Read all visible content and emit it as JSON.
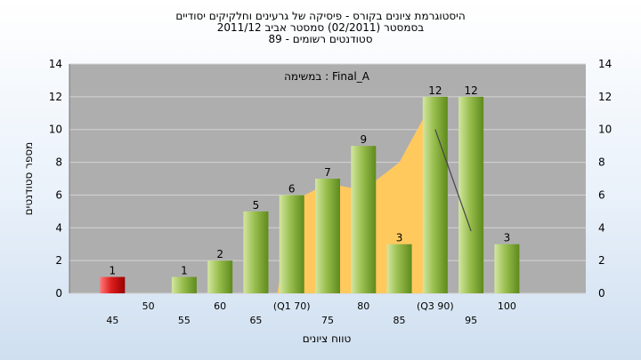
{
  "chart_data": {
    "type": "bar",
    "title_lines": [
      "היסטוגרמת ציונים בקורס - פיסיקה של גרעינים וחלקיקים יסודיים",
      "בסמסטר  (02/2011)  סמסטר אביב 2011/12",
      "סטודנטים רשומים - 89"
    ],
    "annotation": "במשימה : Final_A",
    "xlabel": "טווח ציונים",
    "ylabel": "מספר סטודנטים",
    "ylim": [
      0,
      14
    ],
    "yticks": [
      0,
      2,
      4,
      6,
      8,
      10,
      12,
      14
    ],
    "grid": true,
    "x_tick_labels": [
      {
        "x": 45,
        "label": "45",
        "row": "lower"
      },
      {
        "x": 50,
        "label": "50",
        "row": "upper"
      },
      {
        "x": 55,
        "label": "55",
        "row": "lower"
      },
      {
        "x": 60,
        "label": "60",
        "row": "upper"
      },
      {
        "x": 65,
        "label": "65",
        "row": "lower"
      },
      {
        "x": 70,
        "label": "(Q1 70)",
        "row": "upper"
      },
      {
        "x": 75,
        "label": "75",
        "row": "lower"
      },
      {
        "x": 80,
        "label": "80",
        "row": "upper"
      },
      {
        "x": 85,
        "label": "85",
        "row": "lower"
      },
      {
        "x": 90,
        "label": "(Q3 90)",
        "row": "upper"
      },
      {
        "x": 95,
        "label": "95",
        "row": "lower"
      },
      {
        "x": 100,
        "label": "100",
        "row": "upper"
      }
    ],
    "bars": [
      {
        "x": 45,
        "value": 1,
        "color": "red"
      },
      {
        "x": 55,
        "value": 1,
        "color": "green"
      },
      {
        "x": 60,
        "value": 2,
        "color": "green"
      },
      {
        "x": 65,
        "value": 5,
        "color": "green"
      },
      {
        "x": 70,
        "value": 6,
        "color": "green"
      },
      {
        "x": 75,
        "value": 7,
        "color": "green"
      },
      {
        "x": 80,
        "value": 9,
        "color": "green"
      },
      {
        "x": 85,
        "value": 3,
        "color": "green"
      },
      {
        "x": 90,
        "value": 12,
        "color": "green"
      },
      {
        "x": 95,
        "value": 12,
        "color": "green"
      },
      {
        "x": 100,
        "value": 3,
        "color": "green"
      }
    ],
    "area": {
      "color": "#ffc95e",
      "points": [
        {
          "x": 68,
          "y": 0
        },
        {
          "x": 70,
          "y": 5.6
        },
        {
          "x": 75,
          "y": 6.7
        },
        {
          "x": 80,
          "y": 6.3
        },
        {
          "x": 85,
          "y": 8.0
        },
        {
          "x": 90,
          "y": 12.0
        },
        {
          "x": 90,
          "y": 0
        }
      ]
    },
    "line": {
      "color": "#444444",
      "points": [
        {
          "x": 90,
          "y": 10.0
        },
        {
          "x": 95,
          "y": 3.8
        }
      ]
    },
    "colors": {
      "plot_bg": "#aeaeae",
      "grid": "#d4d4d4",
      "bar_green_light": "#d3e6a0",
      "bar_green_mid": "#98be4e",
      "bar_green_dark": "#5e8a1c",
      "bar_red_light": "#ff7a7a",
      "bar_red_mid": "#dd1e1e",
      "bar_red_dark": "#990000"
    }
  }
}
